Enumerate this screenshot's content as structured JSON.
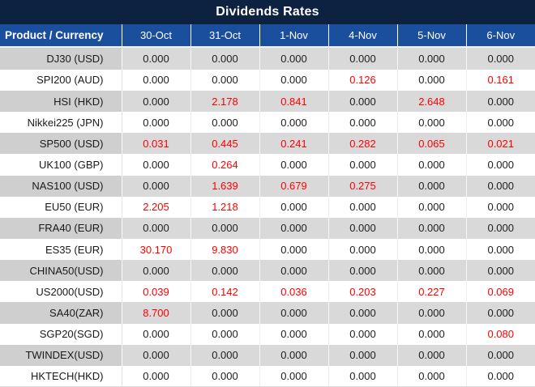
{
  "colors": {
    "title_bg": "#0D2141",
    "header_bg": "#1A4F9E",
    "stripe": "#D9D9D9",
    "stripe_label": "#CFCFCF",
    "red": "#FF0000",
    "ink": "#202020"
  },
  "table": {
    "title": "Dividends Rates",
    "header": {
      "product_label": "Product / Currency",
      "dates": [
        "30-Oct",
        "31-Oct",
        "1-Nov",
        "4-Nov",
        "5-Nov",
        "6-Nov"
      ]
    },
    "rows": [
      {
        "product": "DJ30 (USD)",
        "values": [
          "0.000",
          "0.000",
          "0.000",
          "0.000",
          "0.000",
          "0.000"
        ],
        "red": [
          false,
          false,
          false,
          false,
          false,
          false
        ]
      },
      {
        "product": "SPI200 (AUD)",
        "values": [
          "0.000",
          "0.000",
          "0.000",
          "0.126",
          "0.000",
          "0.161"
        ],
        "red": [
          false,
          false,
          false,
          true,
          false,
          true
        ]
      },
      {
        "product": "HSI (HKD)",
        "values": [
          "0.000",
          "2.178",
          "0.841",
          "0.000",
          "2.648",
          "0.000"
        ],
        "red": [
          false,
          true,
          true,
          false,
          true,
          false
        ]
      },
      {
        "product": "Nikkei225 (JPN)",
        "values": [
          "0.000",
          "0.000",
          "0.000",
          "0.000",
          "0.000",
          "0.000"
        ],
        "red": [
          false,
          false,
          false,
          false,
          false,
          false
        ]
      },
      {
        "product": "SP500 (USD)",
        "values": [
          "0.031",
          "0.445",
          "0.241",
          "0.282",
          "0.065",
          "0.021"
        ],
        "red": [
          true,
          true,
          true,
          true,
          true,
          true
        ]
      },
      {
        "product": "UK100 (GBP)",
        "values": [
          "0.000",
          "0.264",
          "0.000",
          "0.000",
          "0.000",
          "0.000"
        ],
        "red": [
          false,
          true,
          false,
          false,
          false,
          false
        ]
      },
      {
        "product": "NAS100 (USD)",
        "values": [
          "0.000",
          "1.639",
          "0.679",
          "0.275",
          "0.000",
          "0.000"
        ],
        "red": [
          false,
          true,
          true,
          true,
          false,
          false
        ]
      },
      {
        "product": "EU50 (EUR)",
        "values": [
          "2.205",
          "1.218",
          "0.000",
          "0.000",
          "0.000",
          "0.000"
        ],
        "red": [
          true,
          true,
          false,
          false,
          false,
          false
        ]
      },
      {
        "product": "FRA40 (EUR)",
        "values": [
          "0.000",
          "0.000",
          "0.000",
          "0.000",
          "0.000",
          "0.000"
        ],
        "red": [
          false,
          false,
          false,
          false,
          false,
          false
        ]
      },
      {
        "product": "ES35 (EUR)",
        "values": [
          "30.170",
          "9.830",
          "0.000",
          "0.000",
          "0.000",
          "0.000"
        ],
        "red": [
          true,
          true,
          false,
          false,
          false,
          false
        ]
      },
      {
        "product": "CHINA50(USD)",
        "values": [
          "0.000",
          "0.000",
          "0.000",
          "0.000",
          "0.000",
          "0.000"
        ],
        "red": [
          false,
          false,
          false,
          false,
          false,
          false
        ]
      },
      {
        "product": "US2000(USD)",
        "values": [
          "0.039",
          "0.142",
          "0.036",
          "0.203",
          "0.227",
          "0.069"
        ],
        "red": [
          true,
          true,
          true,
          true,
          true,
          true
        ]
      },
      {
        "product": "SA40(ZAR)",
        "values": [
          "8.700",
          "0.000",
          "0.000",
          "0.000",
          "0.000",
          "0.000"
        ],
        "red": [
          true,
          false,
          false,
          false,
          false,
          false
        ]
      },
      {
        "product": "SGP20(SGD)",
        "values": [
          "0.000",
          "0.000",
          "0.000",
          "0.000",
          "0.000",
          "0.080"
        ],
        "red": [
          false,
          false,
          false,
          false,
          false,
          true
        ]
      },
      {
        "product": "TWINDEX(USD)",
        "values": [
          "0.000",
          "0.000",
          "0.000",
          "0.000",
          "0.000",
          "0.000"
        ],
        "red": [
          false,
          false,
          false,
          false,
          false,
          false
        ]
      },
      {
        "product": "HKTECH(HKD)",
        "values": [
          "0.000",
          "0.000",
          "0.000",
          "0.000",
          "0.000",
          "0.000"
        ],
        "red": [
          false,
          false,
          false,
          false,
          false,
          false
        ]
      }
    ]
  }
}
